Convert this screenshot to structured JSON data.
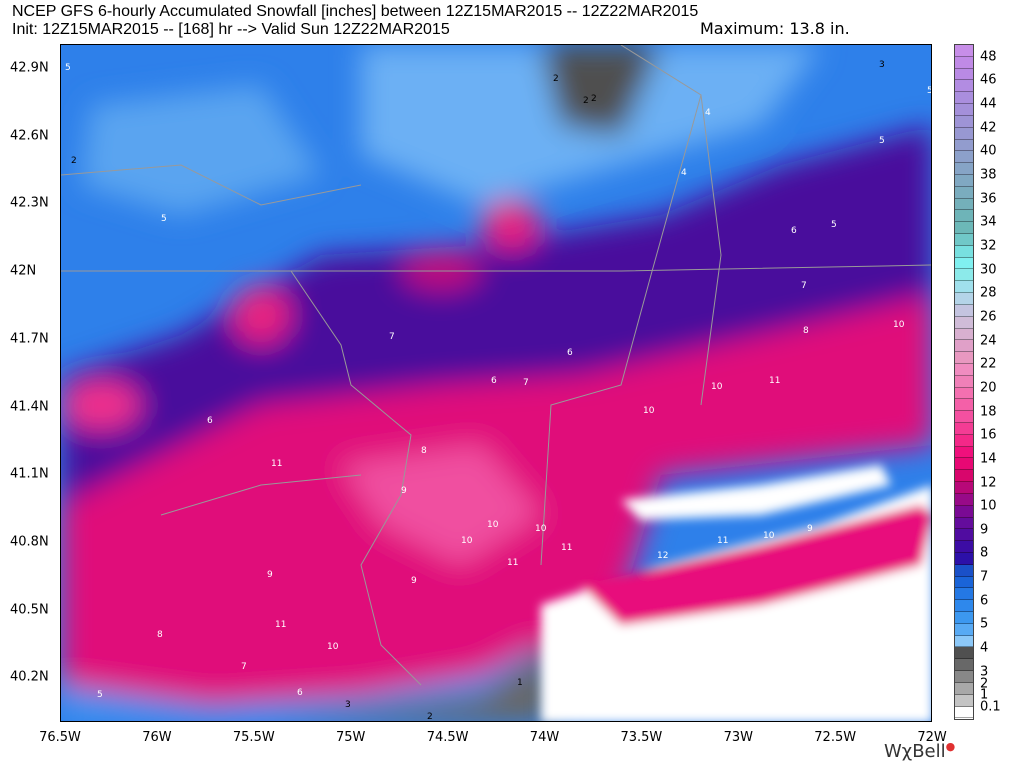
{
  "header": {
    "title": "NCEP GFS 6-hourly Accumulated Snowfall [inches] between 12Z15MAR2015 -- 12Z22MAR2015",
    "subtitle": "Init: 12Z15MAR2015 -- [168] hr --> Valid Sun 12Z22MAR2015",
    "maximum": "Maximum:  13.8 in."
  },
  "axes": {
    "x_ticks": [
      "76.5W",
      "76W",
      "75.5W",
      "75W",
      "74.5W",
      "74W",
      "73.5W",
      "73W",
      "72.5W",
      "72W"
    ],
    "y_ticks": [
      "42.9N",
      "42.6N",
      "42.3N",
      "42N",
      "41.7N",
      "41.4N",
      "41.1N",
      "40.8N",
      "40.5N",
      "40.2N"
    ]
  },
  "colorbar": {
    "labels": [
      "48",
      "46",
      "44",
      "42",
      "40",
      "38",
      "36",
      "34",
      "32",
      "30",
      "28",
      "26",
      "24",
      "22",
      "20",
      "18",
      "16",
      "14",
      "12",
      "10",
      "9",
      "8",
      "7",
      "6",
      "5",
      "4",
      "3",
      "2",
      "1",
      "0.1"
    ],
    "colors": [
      "#c78ee8",
      "#c08ae6",
      "#b98ae4",
      "#b28ce2",
      "#aa8ede",
      "#a490da",
      "#9e94d6",
      "#9898d2",
      "#929cce",
      "#8ca0ca",
      "#86a4c6",
      "#80a8c2",
      "#7aacbe",
      "#74b0ba",
      "#6eb4b8",
      "#6cb8b8",
      "#70c8c8",
      "#78e0e0",
      "#80f0f0",
      "#8ceaea",
      "#a0e0ec",
      "#b4d4e8",
      "#c4c4e0",
      "#d0bcd8",
      "#d8b0d0",
      "#e0a0c8",
      "#e898c0",
      "#f08cc0",
      "#f080b8",
      "#f470b0",
      "#f460a8",
      "#f450a0",
      "#f43c94",
      "#f42888",
      "#f0107c",
      "#e80874",
      "#d8066c",
      "#b80878",
      "#980a88",
      "#7a0a94",
      "#640c9c",
      "#500ca0",
      "#3c0ca4",
      "#2c10a8",
      "#1a50c8",
      "#1a64d8",
      "#2478e4",
      "#2e88ec",
      "#3c98f0",
      "#58aaf4",
      "#8cc8f8",
      "#505050",
      "#686868",
      "#888888",
      "#a8a8a8",
      "#c4c4c4",
      "#ffffff"
    ],
    "label_positions_index": [
      1,
      3,
      5,
      7,
      9,
      11,
      13,
      15,
      17,
      19,
      21,
      23,
      25,
      27,
      29,
      31,
      33,
      35,
      37,
      39,
      41,
      43,
      45,
      47,
      49,
      51,
      53,
      54,
      55,
      56
    ]
  },
  "contour_labels": [
    "2",
    "2",
    "2",
    "3",
    "4",
    "4",
    "5",
    "5",
    "5",
    "6",
    "5",
    "2",
    "7",
    "6",
    "7",
    "8",
    "10",
    "10",
    "11",
    "10",
    "7",
    "6",
    "6",
    "11",
    "8",
    "9",
    "10",
    "10",
    "10",
    "11",
    "11",
    "12",
    "11",
    "10",
    "9",
    "9",
    "9",
    "8",
    "11",
    "10",
    "7",
    "6",
    "5",
    "3",
    "2",
    "1",
    "5"
  ],
  "logo": "WχBell",
  "colors": {
    "ocean": "#ffffff",
    "heavy": "#f0107c",
    "moderate": "#500ca0",
    "light": "#2e88ec",
    "trace": "#505050"
  }
}
